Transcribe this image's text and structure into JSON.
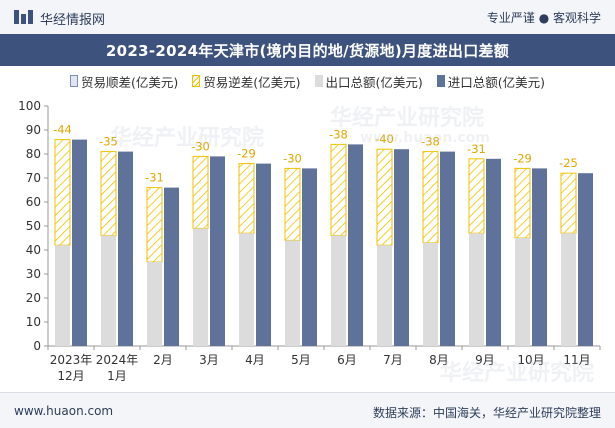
{
  "header": {
    "brand": "华经情报网",
    "tagline": "专业严谨 ● 客观科学"
  },
  "footer": {
    "website": "www.huaon.com",
    "source": "数据来源：中国海关，华经产业研究院整理"
  },
  "watermarks": [
    "华经产业研究院",
    "www.huaon.com"
  ],
  "colors": {
    "title_bg": "#3d527c",
    "export": "#dcdcdc",
    "import": "#5f7299",
    "deficit": "#f2c200",
    "surplus": "#dfe6f2",
    "deficit_label": "#e0a800"
  },
  "chart_data": {
    "type": "bar",
    "title": "2023-2024年天津市(境内目的地/货源地)月度进出口差额",
    "legend": [
      "贸易顺差(亿美元)",
      "贸易逆差(亿美元)",
      "出口总额(亿美元)",
      "进口总额(亿美元)"
    ],
    "legend_position": "top",
    "categories": [
      [
        "2023年",
        "12月"
      ],
      [
        "2024年",
        "1月"
      ],
      [
        "2月"
      ],
      [
        "3月"
      ],
      [
        "4月"
      ],
      [
        "5月"
      ],
      [
        "6月"
      ],
      [
        "7月"
      ],
      [
        "8月"
      ],
      [
        "9月"
      ],
      [
        "10月"
      ],
      [
        "11月"
      ]
    ],
    "series": [
      {
        "name": "出口总额(亿美元)",
        "values": [
          42,
          46,
          35,
          49,
          47,
          44,
          46,
          42,
          43,
          47,
          45,
          47
        ]
      },
      {
        "name": "进口总额(亿美元)",
        "values": [
          86,
          81,
          66,
          79,
          76,
          74,
          84,
          82,
          81,
          78,
          74,
          72
        ]
      },
      {
        "name": "贸易逆差(亿美元)",
        "values": [
          -44,
          -35,
          -31,
          -30,
          -29,
          -30,
          -38,
          -40,
          -38,
          -31,
          -29,
          -25
        ]
      }
    ],
    "ylim": [
      0,
      100
    ],
    "yticks": [
      0,
      10,
      20,
      30,
      40,
      50,
      60,
      70,
      80,
      90,
      100
    ],
    "grid": false
  }
}
